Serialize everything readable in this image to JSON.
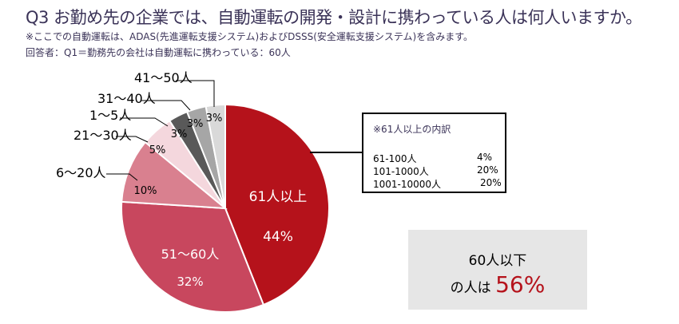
{
  "title": "Q3  お勤め先の企業では、自動運転の開発・設計に携わっている人は何人いますか。",
  "note1": "※ここでの自動運転は、ADAS(先進運転支援システム)およびDSSS(安全運転支援システム)を含みます。",
  "note2": "回答者：Q1＝勤務先の会社は自動運転に携わっている：60人",
  "chart_data": {
    "type": "pie",
    "categories": [
      "61人以上",
      "51〜60人",
      "6〜20人",
      "21〜30人",
      "1〜5人",
      "31〜40人",
      "41〜50人"
    ],
    "values": [
      44,
      32,
      10,
      5,
      3,
      3,
      3
    ],
    "value_labels": [
      "44%",
      "32%",
      "10%",
      "5%",
      "3%",
      "3%",
      "3%"
    ],
    "colors": [
      "#b5121b",
      "#c8475e",
      "#d9808f",
      "#f4d7dd",
      "#595959",
      "#a6a6a6",
      "#d9d9d9"
    ],
    "start": "12 o'clock",
    "direction": "clockwise"
  },
  "breakdown": {
    "heading": "※61人以上の内訳",
    "rows": [
      {
        "label": "61-100人",
        "value": "4%"
      },
      {
        "label": "101-1000人",
        "value": "20%"
      },
      {
        "label": "1001-10000人",
        "value": "20%"
      }
    ]
  },
  "summary": {
    "line1": "60人以下",
    "line2_prefix": "の人は",
    "line2_value": "56%"
  }
}
